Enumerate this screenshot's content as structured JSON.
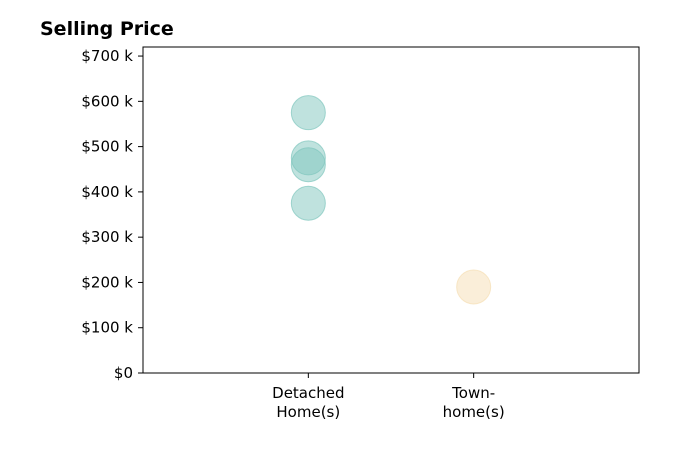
{
  "chart_data": {
    "type": "scatter",
    "title": "Selling Price",
    "xlabel": "",
    "ylabel": "",
    "categories": [
      "Detached\nHome(s)",
      "Town-\nhome(s)"
    ],
    "xlim": [
      -1,
      2
    ],
    "ylim": [
      0,
      720000
    ],
    "y_ticks": [
      0,
      100000,
      200000,
      300000,
      400000,
      500000,
      600000,
      700000
    ],
    "y_tick_labels": [
      "$0",
      "$100 k",
      "$200 k",
      "$300 k",
      "$400 k",
      "$500 k",
      "$600 k",
      "$700 k"
    ],
    "grid": false,
    "series": [
      {
        "category_index": 0,
        "color": "#7fc6bd",
        "values": [
          575000,
          475000,
          460000,
          375000
        ]
      },
      {
        "category_index": 1,
        "color": "#f5deb3",
        "values": [
          190000
        ]
      }
    ]
  }
}
